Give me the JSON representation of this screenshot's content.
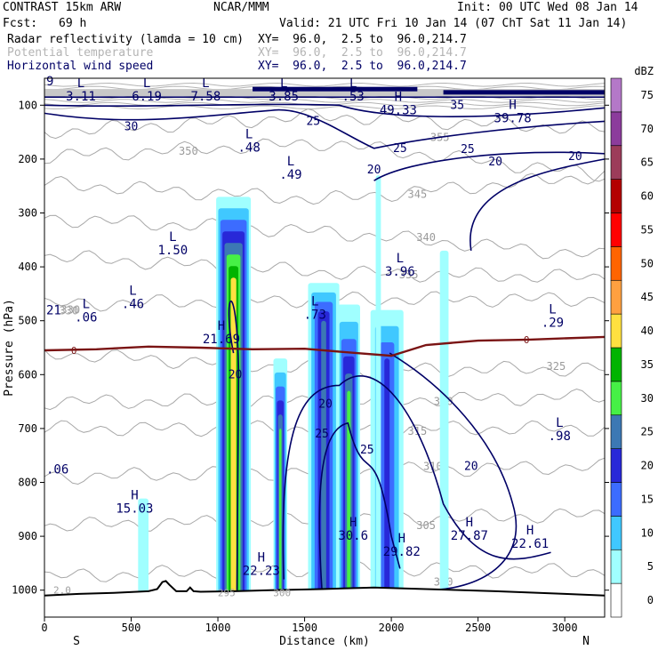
{
  "header": {
    "model": "CONTRAST 15km ARW",
    "org": "NCAR/MMM",
    "init": "Init: 00 UTC Wed 08 Jan 14",
    "fcst_label": "Fcst:",
    "fcst_value": "69 h",
    "valid": "Valid: 21 UTC Fri 10 Jan 14 (07 ChT Sat 11 Jan 14)",
    "fields": [
      {
        "name": "Radar reflectivity (lamda = 10 cm)",
        "xy": "XY=  96.0,  2.5 to  96.0,214.7",
        "style": "black"
      },
      {
        "name": "Potential temperature",
        "xy": "XY=  96.0,  2.5 to  96.0,214.7",
        "style": "gray"
      },
      {
        "name": "Horizontal wind speed",
        "xy": "XY=  96.0,  2.5 to  96.0,214.7",
        "style": "navy"
      }
    ]
  },
  "chart_data": {
    "type": "heatmap",
    "title": "",
    "xlabel": "Distance (km)",
    "ylabel": "Pressure (hPa)",
    "x_ticks": [
      0,
      500,
      1000,
      1500,
      2000,
      2500,
      3000
    ],
    "y_ticks": [
      100,
      200,
      300,
      400,
      500,
      600,
      700,
      800,
      900,
      1000
    ],
    "xlim": [
      0,
      3230
    ],
    "ylim": [
      50,
      1050
    ],
    "x_end_labels": {
      "left": "S",
      "right": "N"
    },
    "colorbar": {
      "unit": "dBZ",
      "levels": [
        0,
        5,
        10,
        15,
        20,
        25,
        30,
        35,
        40,
        45,
        50,
        55,
        60,
        65,
        70,
        75
      ],
      "colors": [
        "#ffffff",
        "#a0ffff",
        "#40c8ff",
        "#3c6cff",
        "#2828d8",
        "#3c78b4",
        "#46f046",
        "#00b400",
        "#ffe040",
        "#ffa040",
        "#ff6400",
        "#ff0000",
        "#b40000",
        "#9c3c5a",
        "#8c3c9c",
        "#b478c8"
      ]
    },
    "reflectivity_columns": [
      {
        "x0": 990,
        "x1": 1190,
        "p_top": 270,
        "core_p_top": 420,
        "max_dbz": 40
      },
      {
        "x0": 1320,
        "x1": 1400,
        "p_top": 570,
        "core_p_top": 700,
        "max_dbz": 30
      },
      {
        "x0": 1520,
        "x1": 1700,
        "p_top": 430,
        "core_p_top": 500,
        "max_dbz": 25
      },
      {
        "x0": 1690,
        "x1": 1820,
        "p_top": 470,
        "core_p_top": 630,
        "max_dbz": 30
      },
      {
        "x0": 1880,
        "x1": 2070,
        "p_top": 480,
        "core_p_top": 570,
        "max_dbz": 20
      },
      {
        "x0": 540,
        "x1": 600,
        "p_top": 830,
        "core_p_top": 830,
        "max_dbz": 5
      },
      {
        "x0": 2280,
        "x1": 2330,
        "p_top": 370,
        "core_p_top": 370,
        "max_dbz": 5
      },
      {
        "x0": 1910,
        "x1": 1940,
        "p_top": 230,
        "core_p_top": 230,
        "max_dbz": 5
      }
    ],
    "zero_isotherm": {
      "label": "0",
      "x": [
        0,
        300,
        600,
        900,
        1200,
        1500,
        1800,
        2000,
        2200,
        2500,
        2800,
        3230
      ],
      "p": [
        555,
        553,
        548,
        550,
        553,
        552,
        560,
        565,
        545,
        537,
        535,
        530
      ]
    },
    "theta_contour_labels": [
      "355",
      "350",
      "345",
      "340",
      "335",
      "330",
      "325",
      "320",
      "315",
      "310",
      "305",
      "300"
    ],
    "wind_contour_labels": [
      "35",
      "30",
      "25",
      "20"
    ],
    "extrema_labels": [
      {
        "type": "L",
        "value": "3.11",
        "x": 210,
        "p": 70
      },
      {
        "type": "L",
        "value": "6.19",
        "x": 590,
        "p": 70
      },
      {
        "type": "L",
        "value": "7.58",
        "x": 930,
        "p": 70
      },
      {
        "type": "L",
        "value": "3.85",
        "x": 1380,
        "p": 70
      },
      {
        "type": "L",
        "value": ".53",
        "x": 1780,
        "p": 70
      },
      {
        "type": "H",
        "value": "49.33",
        "x": 2040,
        "p": 95
      },
      {
        "type": "H",
        "value": "39.78",
        "x": 2700,
        "p": 110
      },
      {
        "type": "L",
        "value": ".48",
        "x": 1180,
        "p": 165
      },
      {
        "type": "L",
        "value": ".49",
        "x": 1420,
        "p": 215
      },
      {
        "type": "L",
        "value": "1.50",
        "x": 740,
        "p": 355
      },
      {
        "type": "L",
        "value": ".46",
        "x": 510,
        "p": 455
      },
      {
        "type": "L",
        "value": ".06",
        "x": 240,
        "p": 480
      },
      {
        "type": "L",
        "value": ".73",
        "x": 1560,
        "p": 475
      },
      {
        "type": "H",
        "value": "21.69",
        "x": 1020,
        "p": 520
      },
      {
        "type": "L",
        "value": "3.96",
        "x": 2050,
        "p": 395
      },
      {
        "type": "L",
        "value": ".29",
        "x": 2930,
        "p": 490
      },
      {
        "type": "L",
        "value": ".98",
        "x": 2970,
        "p": 700
      },
      {
        "type": "H",
        "value": "15.03",
        "x": 520,
        "p": 835
      },
      {
        "type": "H",
        "value": "22.23",
        "x": 1250,
        "p": 950
      },
      {
        "type": "H",
        "value": "30.6",
        "x": 1780,
        "p": 885
      },
      {
        "type": "H",
        "value": "29.82",
        "x": 2060,
        "p": 915
      },
      {
        "type": "H",
        "value": "27.87",
        "x": 2450,
        "p": 885
      },
      {
        "type": "H",
        "value": "22.61",
        "x": 2800,
        "p": 900
      }
    ],
    "edge_labels": [
      ".06",
      "21",
      "9",
      "330",
      "2.0",
      "295",
      "300"
    ],
    "terrain": {
      "x": [
        0,
        200,
        400,
        600,
        650,
        680,
        700,
        720,
        760,
        820,
        840,
        860,
        900,
        1100,
        1300,
        1600,
        1900,
        2200,
        2600,
        3000,
        3230
      ],
      "p": [
        1010,
        1007,
        1005,
        1002,
        998,
        985,
        983,
        990,
        1002,
        1002,
        995,
        1002,
        1003,
        1002,
        1000,
        998,
        995,
        998,
        1002,
        1007,
        1010
      ]
    }
  }
}
